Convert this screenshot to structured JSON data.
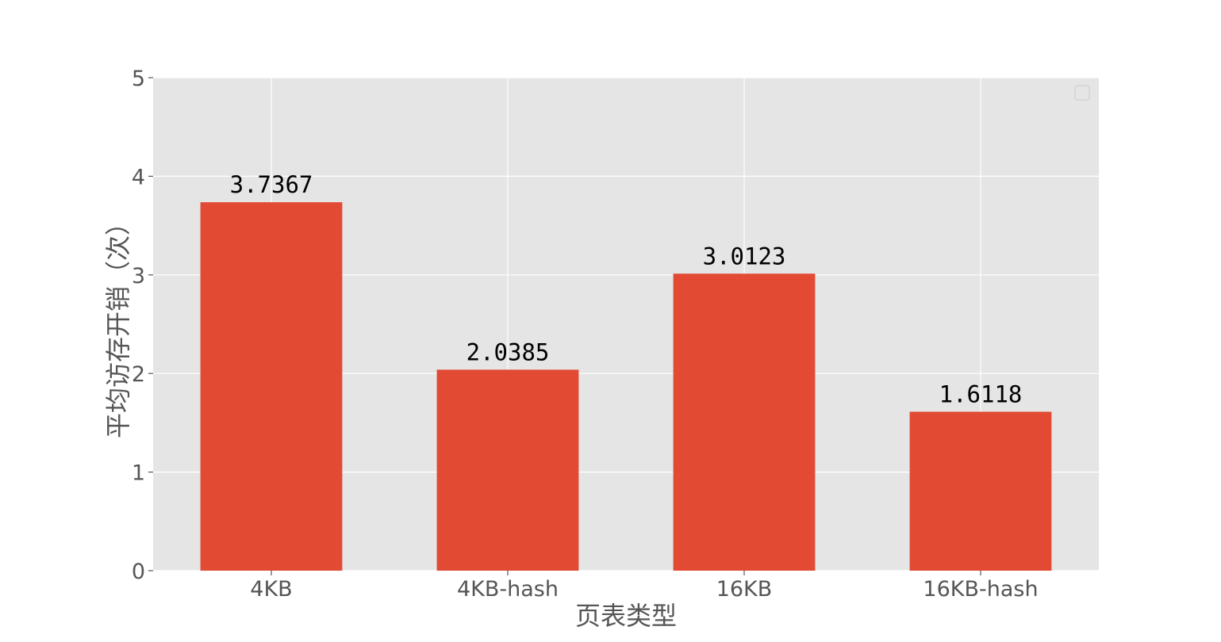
{
  "chart_data": {
    "type": "bar",
    "categories": [
      "4KB",
      "4KB-hash",
      "16KB",
      "16KB-hash"
    ],
    "values": [
      3.7367,
      2.0385,
      3.0123,
      1.6118
    ],
    "value_labels": [
      "3.7367",
      "2.0385",
      "3.0123",
      "1.6118"
    ],
    "title": "",
    "xlabel": "页表类型",
    "ylabel": "平均访存开销（次）",
    "ylim": [
      0,
      5
    ],
    "yticks": [
      0,
      1,
      2,
      3,
      4,
      5
    ],
    "grid": true,
    "legend": "top-right",
    "bar_color": "#e24a33",
    "background_color": "#e5e5e5"
  }
}
